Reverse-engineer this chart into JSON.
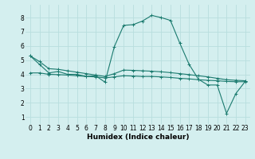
{
  "xlabel": "Humidex (Indice chaleur)",
  "background_color": "#d4efef",
  "grid_color": "#b8dede",
  "line_color": "#1a7a6e",
  "xlim": [
    -0.5,
    23.5
  ],
  "ylim": [
    0.5,
    8.9
  ],
  "yticks": [
    1,
    2,
    3,
    4,
    5,
    6,
    7,
    8
  ],
  "xticks": [
    0,
    1,
    2,
    3,
    4,
    5,
    6,
    7,
    8,
    9,
    10,
    11,
    12,
    13,
    14,
    15,
    16,
    17,
    18,
    19,
    20,
    21,
    22,
    23
  ],
  "series": [
    {
      "x": [
        0,
        1,
        2,
        3,
        4,
        5,
        6,
        7,
        8,
        9,
        10,
        11,
        12,
        13,
        14,
        15,
        16,
        17,
        18,
        19,
        20,
        21,
        22,
        23
      ],
      "y": [
        5.3,
        4.7,
        4.1,
        4.2,
        4.0,
        4.0,
        3.85,
        3.9,
        3.45,
        5.95,
        7.45,
        7.5,
        7.75,
        8.15,
        8.0,
        7.8,
        6.2,
        4.7,
        3.65,
        3.25,
        3.25,
        1.25,
        2.65,
        3.5
      ]
    },
    {
      "x": [
        0,
        1,
        2,
        3,
        4,
        5,
        6,
        7,
        8,
        9,
        10,
        11,
        12,
        13,
        14,
        15,
        16,
        17,
        18,
        19,
        20,
        21,
        22,
        23
      ],
      "y": [
        4.1,
        4.1,
        4.0,
        3.98,
        3.95,
        3.9,
        3.85,
        3.82,
        3.75,
        3.82,
        3.9,
        3.88,
        3.85,
        3.85,
        3.82,
        3.78,
        3.72,
        3.68,
        3.62,
        3.58,
        3.55,
        3.5,
        3.48,
        3.48
      ]
    },
    {
      "x": [
        0,
        1,
        2,
        3,
        4,
        5,
        6,
        7,
        8,
        9,
        10,
        11,
        12,
        13,
        14,
        15,
        16,
        17,
        18,
        19,
        20,
        21,
        22,
        23
      ],
      "y": [
        5.3,
        4.9,
        4.4,
        4.35,
        4.25,
        4.15,
        4.05,
        3.95,
        3.85,
        4.05,
        4.3,
        4.28,
        4.25,
        4.22,
        4.18,
        4.12,
        4.05,
        3.98,
        3.9,
        3.82,
        3.72,
        3.62,
        3.58,
        3.55
      ]
    }
  ]
}
